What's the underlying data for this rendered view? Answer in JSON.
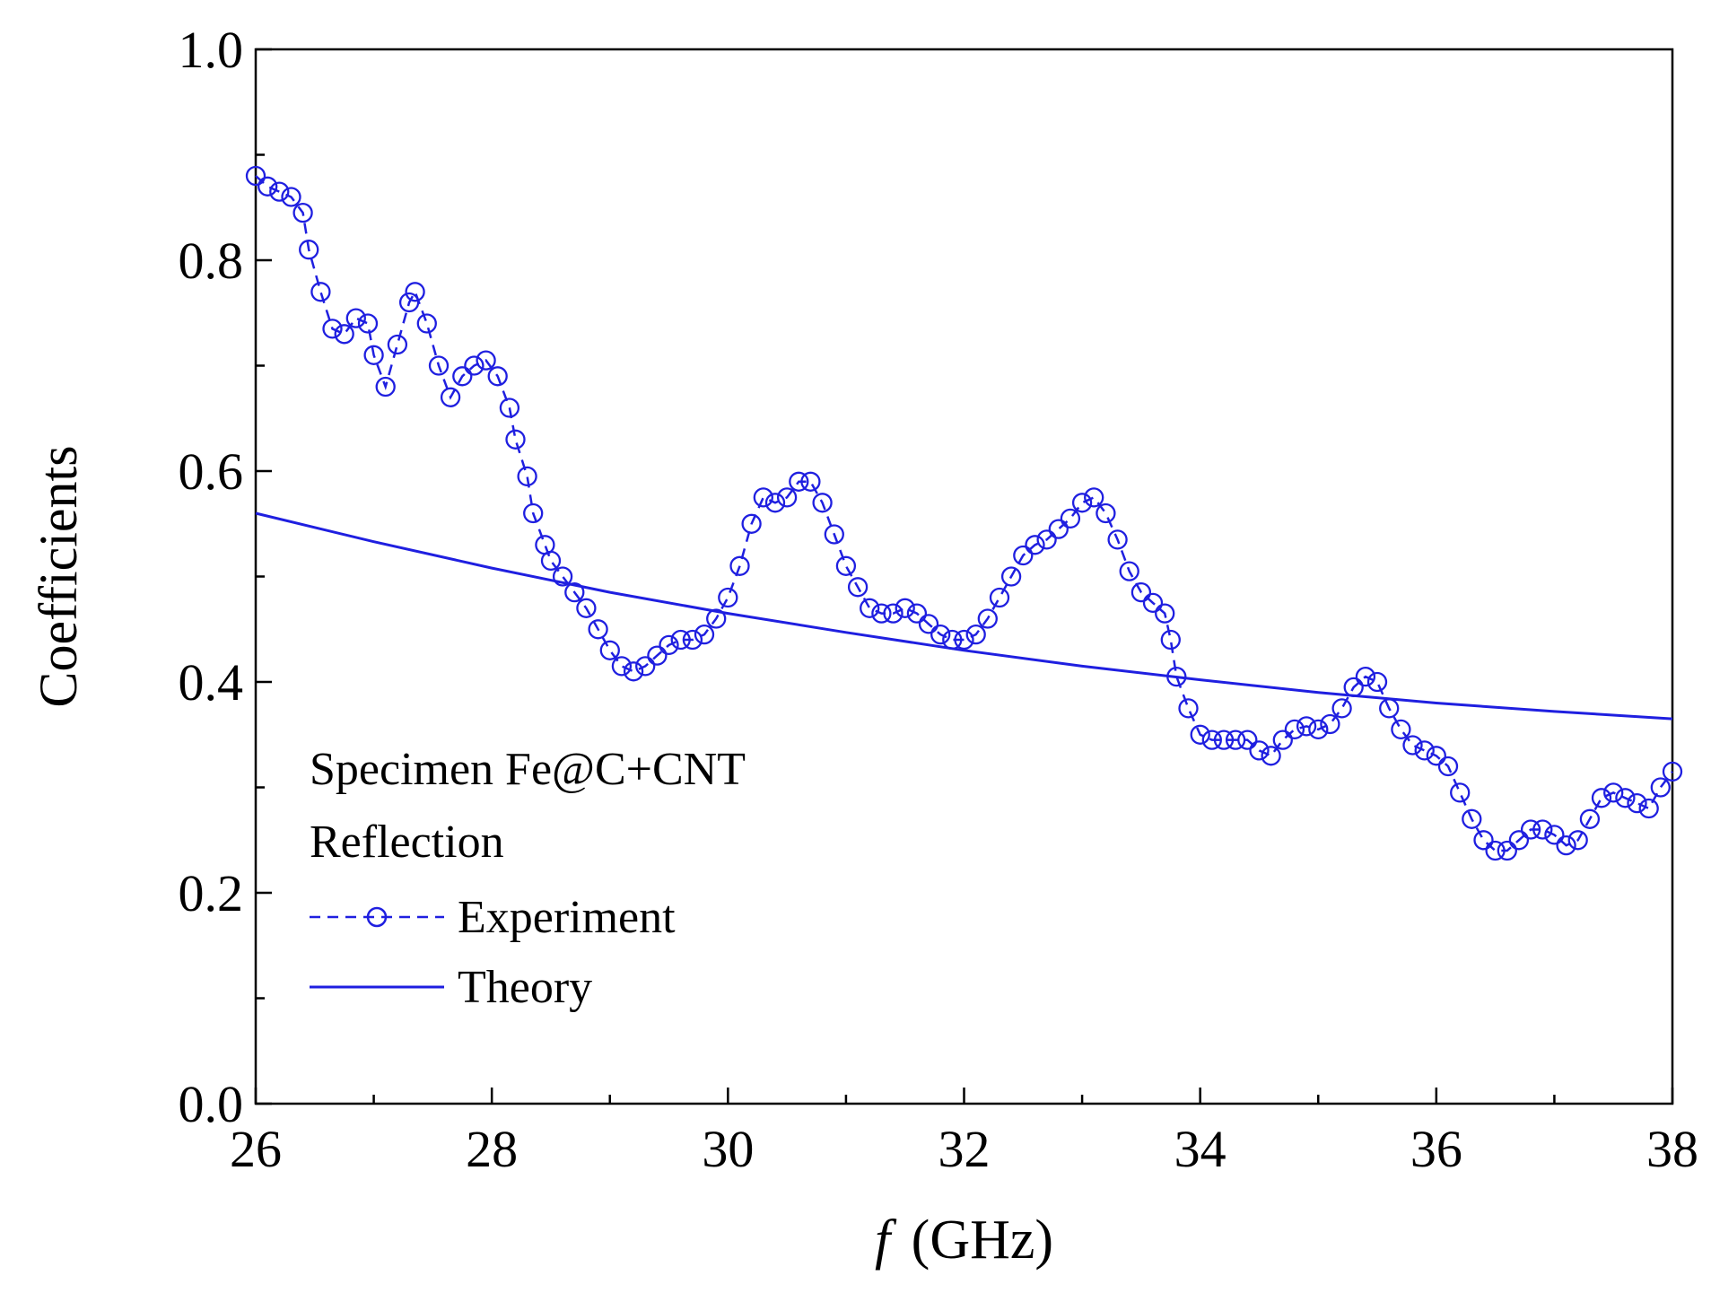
{
  "chart_data": {
    "type": "line",
    "title": "",
    "xlabel": {
      "symbol": "f",
      "unit": "(GHz)"
    },
    "ylabel": "Coefficients",
    "xlim": [
      26,
      38
    ],
    "ylim": [
      0.0,
      1.0
    ],
    "x_ticks": [
      26,
      28,
      30,
      32,
      34,
      36,
      38
    ],
    "x_minor_step": 1,
    "y_ticks": [
      "0.0",
      "0.2",
      "0.4",
      "0.6",
      "0.8",
      "1.0"
    ],
    "y_minor_step": 0.1,
    "grid": false,
    "legend": {
      "placement": "bottom-left",
      "header": [
        "Specimen Fe@C+CNT",
        "Reflection"
      ],
      "entries": [
        "Experiment",
        "Theory"
      ]
    },
    "colors": {
      "series": "#1f1fe0",
      "axis": "#000000"
    },
    "series": [
      {
        "name": "Experiment",
        "style": "dashed-open-circles",
        "points": [
          [
            26.0,
            0.88
          ],
          [
            26.1,
            0.87
          ],
          [
            26.2,
            0.865
          ],
          [
            26.3,
            0.86
          ],
          [
            26.4,
            0.845
          ],
          [
            26.45,
            0.81
          ],
          [
            26.55,
            0.77
          ],
          [
            26.65,
            0.735
          ],
          [
            26.75,
            0.73
          ],
          [
            26.85,
            0.745
          ],
          [
            26.95,
            0.74
          ],
          [
            27.0,
            0.71
          ],
          [
            27.1,
            0.68
          ],
          [
            27.2,
            0.72
          ],
          [
            27.3,
            0.76
          ],
          [
            27.35,
            0.77
          ],
          [
            27.45,
            0.74
          ],
          [
            27.55,
            0.7
          ],
          [
            27.65,
            0.67
          ],
          [
            27.75,
            0.69
          ],
          [
            27.85,
            0.7
          ],
          [
            27.95,
            0.705
          ],
          [
            28.05,
            0.69
          ],
          [
            28.15,
            0.66
          ],
          [
            28.2,
            0.63
          ],
          [
            28.3,
            0.595
          ],
          [
            28.35,
            0.56
          ],
          [
            28.45,
            0.53
          ],
          [
            28.5,
            0.515
          ],
          [
            28.6,
            0.5
          ],
          [
            28.7,
            0.485
          ],
          [
            28.8,
            0.47
          ],
          [
            28.9,
            0.45
          ],
          [
            29.0,
            0.43
          ],
          [
            29.1,
            0.415
          ],
          [
            29.2,
            0.41
          ],
          [
            29.3,
            0.415
          ],
          [
            29.4,
            0.425
          ],
          [
            29.5,
            0.435
          ],
          [
            29.6,
            0.44
          ],
          [
            29.7,
            0.44
          ],
          [
            29.8,
            0.445
          ],
          [
            29.9,
            0.46
          ],
          [
            30.0,
            0.48
          ],
          [
            30.1,
            0.51
          ],
          [
            30.2,
            0.55
          ],
          [
            30.3,
            0.575
          ],
          [
            30.4,
            0.57
          ],
          [
            30.5,
            0.575
          ],
          [
            30.6,
            0.59
          ],
          [
            30.7,
            0.59
          ],
          [
            30.8,
            0.57
          ],
          [
            30.9,
            0.54
          ],
          [
            31.0,
            0.51
          ],
          [
            31.1,
            0.49
          ],
          [
            31.2,
            0.47
          ],
          [
            31.3,
            0.465
          ],
          [
            31.4,
            0.465
          ],
          [
            31.5,
            0.47
          ],
          [
            31.6,
            0.465
          ],
          [
            31.7,
            0.455
          ],
          [
            31.8,
            0.445
          ],
          [
            31.9,
            0.44
          ],
          [
            32.0,
            0.44
          ],
          [
            32.1,
            0.445
          ],
          [
            32.2,
            0.46
          ],
          [
            32.3,
            0.48
          ],
          [
            32.4,
            0.5
          ],
          [
            32.5,
            0.52
          ],
          [
            32.6,
            0.53
          ],
          [
            32.7,
            0.535
          ],
          [
            32.8,
            0.545
          ],
          [
            32.9,
            0.555
          ],
          [
            33.0,
            0.57
          ],
          [
            33.1,
            0.575
          ],
          [
            33.2,
            0.56
          ],
          [
            33.3,
            0.535
          ],
          [
            33.4,
            0.505
          ],
          [
            33.5,
            0.485
          ],
          [
            33.6,
            0.475
          ],
          [
            33.7,
            0.465
          ],
          [
            33.75,
            0.44
          ],
          [
            33.8,
            0.405
          ],
          [
            33.9,
            0.375
          ],
          [
            34.0,
            0.35
          ],
          [
            34.1,
            0.345
          ],
          [
            34.2,
            0.345
          ],
          [
            34.3,
            0.345
          ],
          [
            34.4,
            0.345
          ],
          [
            34.5,
            0.335
          ],
          [
            34.6,
            0.33
          ],
          [
            34.7,
            0.345
          ],
          [
            34.8,
            0.355
          ],
          [
            34.9,
            0.358
          ],
          [
            35.0,
            0.355
          ],
          [
            35.1,
            0.36
          ],
          [
            35.2,
            0.375
          ],
          [
            35.3,
            0.395
          ],
          [
            35.4,
            0.405
          ],
          [
            35.5,
            0.4
          ],
          [
            35.6,
            0.375
          ],
          [
            35.7,
            0.355
          ],
          [
            35.8,
            0.34
          ],
          [
            35.9,
            0.335
          ],
          [
            36.0,
            0.33
          ],
          [
            36.1,
            0.32
          ],
          [
            36.2,
            0.295
          ],
          [
            36.3,
            0.27
          ],
          [
            36.4,
            0.25
          ],
          [
            36.5,
            0.24
          ],
          [
            36.6,
            0.24
          ],
          [
            36.7,
            0.25
          ],
          [
            36.8,
            0.26
          ],
          [
            36.9,
            0.26
          ],
          [
            37.0,
            0.255
          ],
          [
            37.1,
            0.245
          ],
          [
            37.2,
            0.25
          ],
          [
            37.3,
            0.27
          ],
          [
            37.4,
            0.29
          ],
          [
            37.5,
            0.295
          ],
          [
            37.6,
            0.29
          ],
          [
            37.7,
            0.285
          ],
          [
            37.8,
            0.28
          ],
          [
            37.9,
            0.3
          ],
          [
            38.0,
            0.315
          ]
        ]
      },
      {
        "name": "Theory",
        "style": "solid",
        "points": [
          [
            26,
            0.56
          ],
          [
            27,
            0.533
          ],
          [
            28,
            0.508
          ],
          [
            29,
            0.485
          ],
          [
            30,
            0.465
          ],
          [
            31,
            0.447
          ],
          [
            32,
            0.43
          ],
          [
            33,
            0.415
          ],
          [
            34,
            0.402
          ],
          [
            35,
            0.39
          ],
          [
            36,
            0.38
          ],
          [
            37,
            0.372
          ],
          [
            38,
            0.365
          ]
        ]
      }
    ]
  }
}
